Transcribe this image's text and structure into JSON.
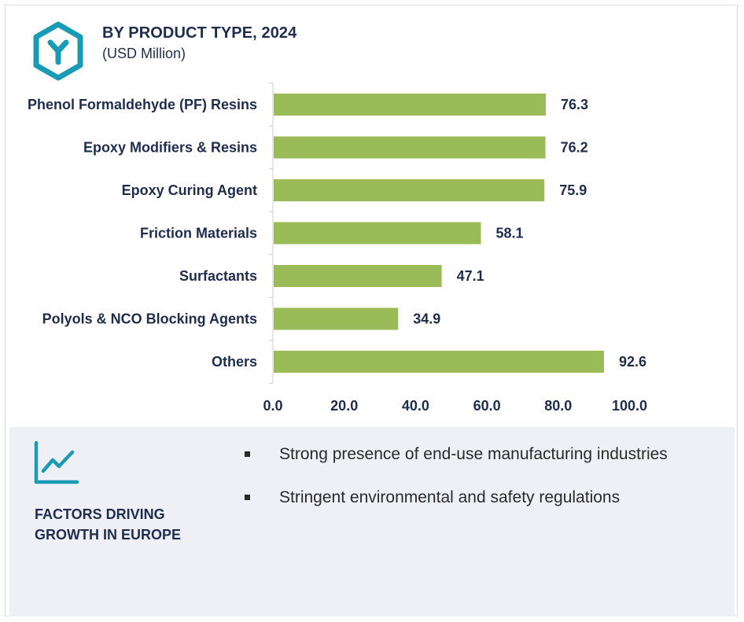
{
  "header": {
    "title": "BY PRODUCT TYPE, 2024",
    "subtitle": "(USD Million)"
  },
  "colors": {
    "bar": "#9bbb59",
    "text": "#1f2d4d",
    "accent": "#1a9bb5",
    "panel": "#eef0f5"
  },
  "icons": {
    "logo": "hexagon-y-logo-icon",
    "factors": "trend-chart-icon"
  },
  "chart_data": {
    "type": "bar",
    "orientation": "horizontal",
    "categories": [
      "Phenol Formaldehyde (PF) Resins",
      "Epoxy Modifiers & Resins",
      "Epoxy Curing Agent",
      "Friction Materials",
      "Surfactants",
      "Polyols & NCO Blocking Agents",
      "Others"
    ],
    "values": [
      76.3,
      76.2,
      75.9,
      58.1,
      47.1,
      34.9,
      92.6
    ],
    "value_labels": [
      "76.3",
      "76.2",
      "75.9",
      "58.1",
      "47.1",
      "34.9",
      "92.6"
    ],
    "xlim": [
      0,
      100
    ],
    "x_ticks": [
      "0.0",
      "20.0",
      "40.0",
      "60.0",
      "80.0",
      "100.0"
    ],
    "grid": false,
    "legend": "none"
  },
  "factors": {
    "heading": "FACTORS DRIVING GROWTH IN EUROPE",
    "bullets": [
      "Strong presence of end-use manufacturing industries",
      "Stringent environmental and safety regulations"
    ]
  }
}
